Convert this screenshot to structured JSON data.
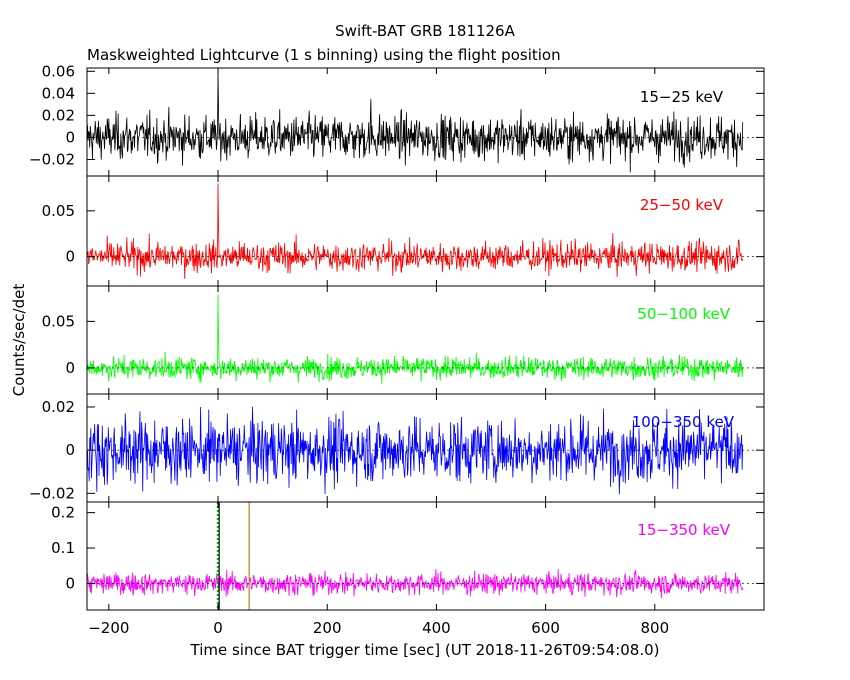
{
  "chart_data": {
    "type": "line",
    "title": "Swift-BAT GRB 181126A",
    "subtitle": "Maskweighted Lightcurve (1 s binning) using the flight position",
    "xlabel": "Time since BAT trigger time [sec] (UT 2018-11-26T09:54:08.0)",
    "ylabel": "Counts/sec/det",
    "xlim": [
      -240,
      1000
    ],
    "x_ticks": [
      -200,
      0,
      200,
      400,
      600,
      800
    ],
    "x_tick_labels": [
      "−200",
      "0",
      "200",
      "400",
      "600",
      "800"
    ],
    "data_range": [
      -240,
      961
    ],
    "grid": false,
    "panels": [
      {
        "name": "15−25 keV",
        "color": "#000000",
        "ylim": [
          -0.035,
          0.063
        ],
        "yticks": [
          -0.02,
          0,
          0.02,
          0.04,
          0.06
        ],
        "ytick_labels": [
          "−0.02",
          "0",
          "0.02",
          "0.04",
          "0.06"
        ],
        "noise": 0.01,
        "peak": [
          0,
          0.06
        ],
        "spikes": [
          [
            280,
            0.035
          ]
        ]
      },
      {
        "name": "25−50 keV",
        "color": "#ff0000",
        "ylim": [
          -0.032,
          0.088
        ],
        "yticks": [
          0,
          0.05
        ],
        "ytick_labels": [
          "0",
          "0.05"
        ],
        "noise": 0.008,
        "peak": [
          0,
          0.08
        ],
        "spikes": []
      },
      {
        "name": "50−100 keV",
        "color": "#00ff00",
        "ylim": [
          -0.028,
          0.088
        ],
        "yticks": [
          0,
          0.05
        ],
        "ytick_labels": [
          "0",
          "0.05"
        ],
        "noise": 0.006,
        "peak": [
          0,
          0.079
        ],
        "spikes": []
      },
      {
        "name": "100−350 keV",
        "color": "#0000ff",
        "ylim": [
          -0.024,
          0.026
        ],
        "yticks": [
          -0.02,
          0,
          0.02
        ],
        "ytick_labels": [
          "−0.02",
          "0",
          "0.02"
        ],
        "noise": 0.0075,
        "peak": null,
        "spikes": []
      },
      {
        "name": "15−350 keV",
        "color": "#ff00ff",
        "ylim": [
          -0.075,
          0.23
        ],
        "yticks": [
          0,
          0.1,
          0.2
        ],
        "ytick_labels": [
          "0",
          "0.1",
          "0.2"
        ],
        "noise": 0.015,
        "peak": null,
        "spikes": []
      }
    ],
    "markers": [
      {
        "x": 0,
        "color": "#00cc00",
        "style": "dotted",
        "panel": 4
      },
      {
        "x": 2,
        "color": "#000000",
        "style": "solid",
        "panel": 4
      },
      {
        "x": 57,
        "color": "#c08020",
        "style": "solid",
        "panel": 4
      }
    ]
  }
}
